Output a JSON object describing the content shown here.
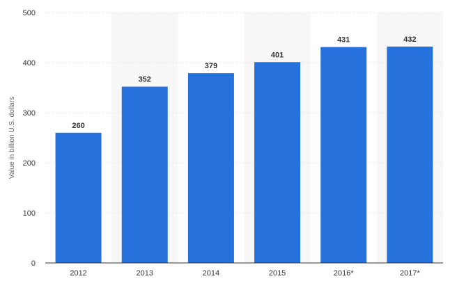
{
  "chart_data": {
    "type": "bar",
    "categories": [
      "2012",
      "2013",
      "2014",
      "2015",
      "2016*",
      "2017*"
    ],
    "values": [
      260,
      352,
      379,
      401,
      431,
      432
    ],
    "title": "",
    "xlabel": "",
    "ylabel": "Value in billion U.S. dollars",
    "ylim": [
      0,
      500
    ],
    "yticks": [
      0,
      100,
      200,
      300,
      400,
      500
    ],
    "grid": true,
    "legend": "none",
    "colors": {
      "bar": "#2771dd",
      "band": "#f7f7f7",
      "grid": "#dcdcdc",
      "text": "#333333"
    }
  }
}
